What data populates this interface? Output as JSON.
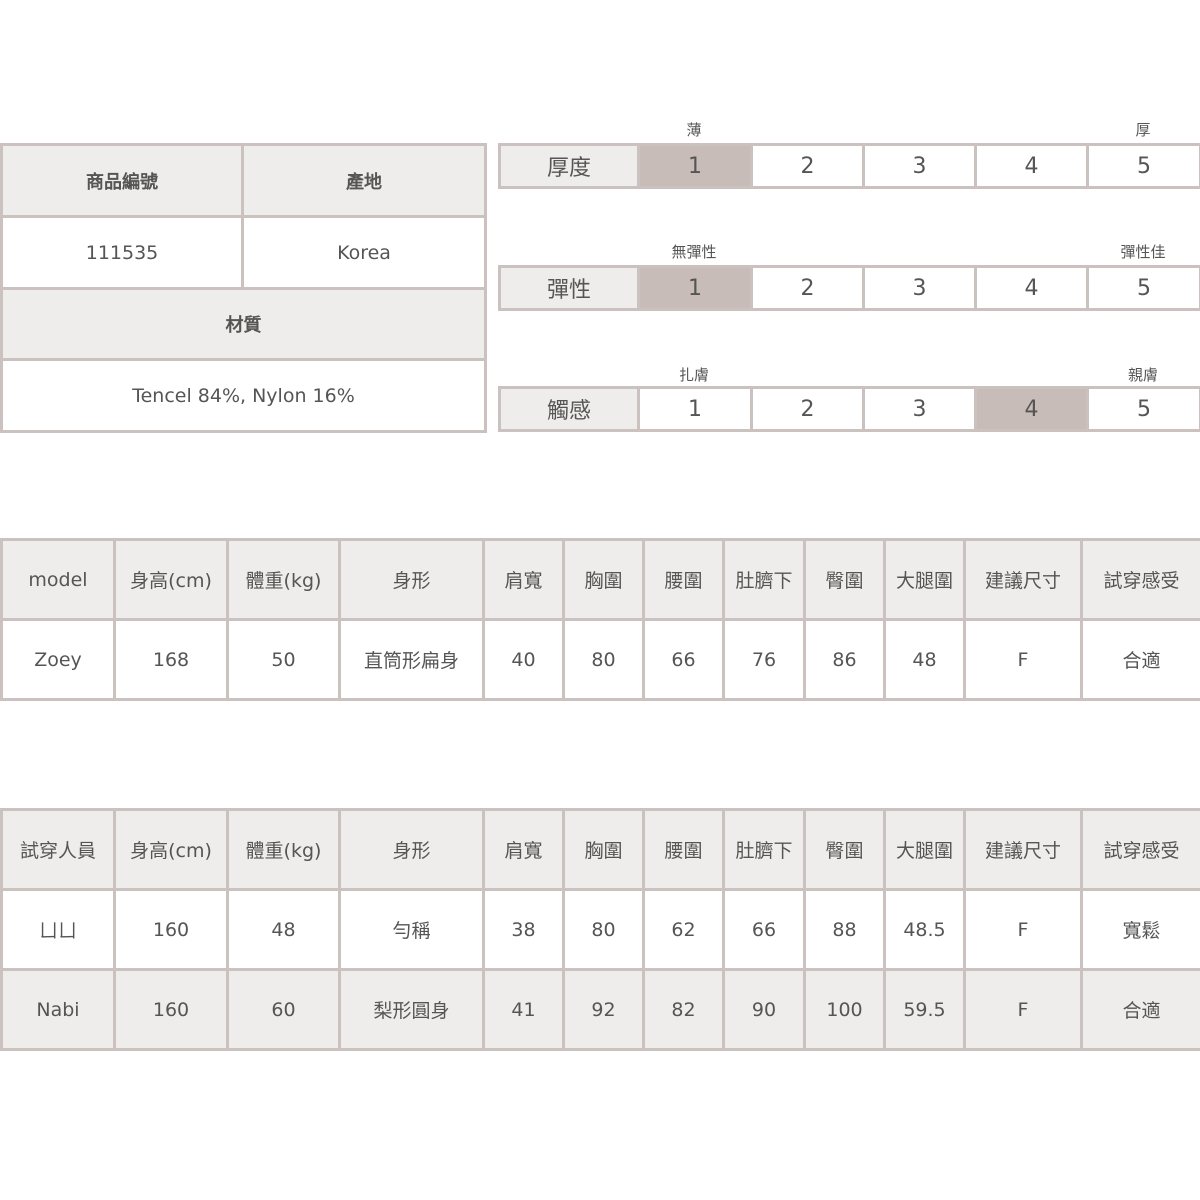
{
  "product_info": {
    "headers": [
      "商品編號",
      "產地"
    ],
    "values": [
      "111535",
      "Korea"
    ],
    "material_header": "材質",
    "material_value": "Tencel 84%, Nylon 16%"
  },
  "scales": [
    {
      "name": "厚度",
      "low_label": "薄",
      "high_label": "厚",
      "options": [
        "1",
        "2",
        "3",
        "4",
        "5"
      ],
      "selected": 1
    },
    {
      "name": "彈性",
      "low_label": "無彈性",
      "high_label": "彈性佳",
      "options": [
        "1",
        "2",
        "3",
        "4",
        "5"
      ],
      "selected": 1
    },
    {
      "name": "觸感",
      "low_label": "扎膚",
      "high_label": "親膚",
      "options": [
        "1",
        "2",
        "3",
        "4",
        "5"
      ],
      "selected": 4
    }
  ],
  "colors": {
    "border": "#cbc2bf",
    "header_bg": "#efedeb",
    "selected_bg": "#c7bcb8",
    "text": "#555555"
  },
  "model_table": {
    "headers": [
      "model",
      "身高(cm)",
      "體重(kg)",
      "身形",
      "肩寬",
      "胸圍",
      "腰圍",
      "肚臍下",
      "臀圍",
      "大腿圍",
      "建議尺寸",
      "試穿感受"
    ],
    "rows": [
      [
        "Zoey",
        "168",
        "50",
        "直筒形扁身",
        "40",
        "80",
        "66",
        "76",
        "86",
        "48",
        "F",
        "合適"
      ]
    ]
  },
  "tester_table": {
    "headers": [
      "試穿人員",
      "身高(cm)",
      "體重(kg)",
      "身形",
      "肩寬",
      "胸圍",
      "腰圍",
      "肚臍下",
      "臀圍",
      "大腿圍",
      "建議尺寸",
      "試穿感受"
    ],
    "rows": [
      [
        "ㄩㄩ",
        "160",
        "48",
        "勻稱",
        "38",
        "80",
        "62",
        "66",
        "88",
        "48.5",
        "F",
        "寬鬆"
      ],
      [
        "Nabi",
        "160",
        "60",
        "梨形圓身",
        "41",
        "92",
        "82",
        "90",
        "100",
        "59.5",
        "F",
        "合適"
      ]
    ]
  }
}
